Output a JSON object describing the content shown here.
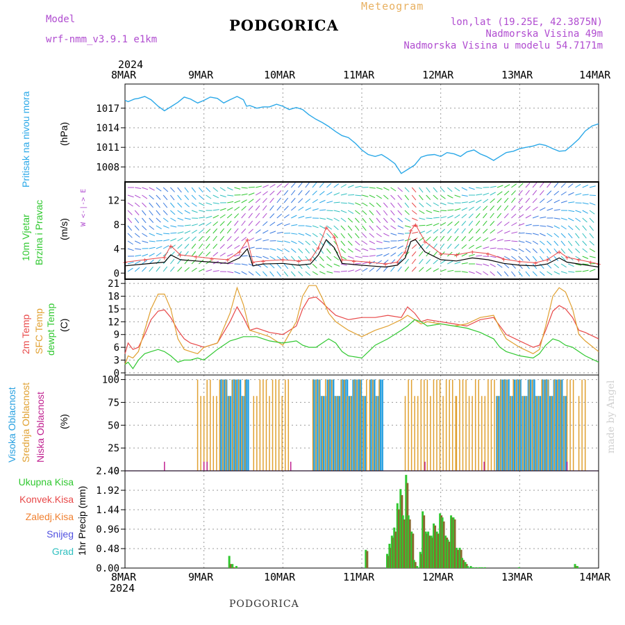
{
  "header": {
    "model_label": "Model",
    "model_name": "wrf-nmm_v3.9.1  e1km",
    "title": "PODGORICA",
    "meteogram": "Meteogram",
    "lonlat": "lon,lat (19.25E, 42.3875N)",
    "elev": "Nadmorska Visina 49m",
    "elev_model": "Nadmorska Visina u modelu 54.7171m"
  },
  "axis_top": {
    "year": "2024",
    "dates": [
      "8MAR",
      "9MAR",
      "10MAR",
      "11MAR",
      "12MAR",
      "13MAR",
      "14MAR"
    ]
  },
  "axis_bottom": {
    "year": "2024",
    "dates": [
      "8MAR",
      "9MAR",
      "10MAR",
      "11MAR",
      "12MAR",
      "13MAR",
      "14MAR"
    ]
  },
  "footer": "PODGORICA",
  "watermark": "made by Angel",
  "panels": {
    "pressure": {
      "label": "Pritisak na nivou mora",
      "unit": "(hPa)"
    },
    "wind": {
      "label1": "10m Vjetar",
      "label2": "Brzina i Pravac",
      "unit": "(m/s)",
      "compass": "W <-|-> E"
    },
    "temp": {
      "label1": "2m Temp",
      "label2": "SFC Temp",
      "label3": "dewpt Temp",
      "unit": "(C)"
    },
    "cloud": {
      "label1": "Visoka Oblacnost",
      "label2": "Srednja Oblacnost",
      "label3": "Niska Oblacnost",
      "unit": "(%)"
    },
    "precip": {
      "unit": "1hr Precip (mm)",
      "legend": [
        "Ukupna Kisa",
        "Konvek.Kisa",
        "Zaledj.Kisa",
        "Snijeg",
        "Grad"
      ]
    }
  },
  "colors": {
    "pressure": "#2aa8e8",
    "temp2m": "#e84848",
    "sfc": "#e0a030",
    "dewpt": "#30c830",
    "cloud_high": "#28a0e0",
    "cloud_mid": "#e0a030",
    "cloud_low": "#c02090",
    "total": "#30c830",
    "conv": "#e84848",
    "frz": "#f08030",
    "snow": "#5050e0",
    "hail": "#30c0c0",
    "purple": "#b04cd0",
    "wind_speed": "#000000",
    "wind_gust": "#e84848"
  },
  "chart_data": [
    {
      "type": "line",
      "title": "Pritisak na nivou mora",
      "ylabel": "(hPa)",
      "x_days": [
        0,
        0.04,
        0.08,
        0.12,
        0.17,
        0.25,
        0.33,
        0.42,
        0.5,
        0.58,
        0.67,
        0.75,
        0.83,
        0.92,
        1.0,
        1.08,
        1.17,
        1.25,
        1.33,
        1.42,
        1.5,
        1.54,
        1.58,
        1.67,
        1.75,
        1.83,
        1.92,
        2.0,
        2.08,
        2.17,
        2.25,
        2.33,
        2.42,
        2.5,
        2.58,
        2.67,
        2.75,
        2.83,
        2.92,
        3.0,
        3.08,
        3.17,
        3.25,
        3.33,
        3.42,
        3.5,
        3.58,
        3.67,
        3.75,
        3.83,
        3.92,
        4.0,
        4.08,
        4.17,
        4.25,
        4.33,
        4.42,
        4.5,
        4.58,
        4.67,
        4.75,
        4.83,
        4.92,
        5.0,
        5.08,
        5.17,
        5.25,
        5.33,
        5.42,
        5.5,
        5.58,
        5.67,
        5.75,
        5.83,
        5.92,
        6.0
      ],
      "values": [
        1018.2,
        1018.0,
        1018.2,
        1018.4,
        1018.5,
        1018.8,
        1018.3,
        1017.3,
        1016.6,
        1017.2,
        1017.9,
        1018.7,
        1018.4,
        1017.8,
        1018.2,
        1018.7,
        1018.5,
        1017.8,
        1018.3,
        1018.8,
        1018.3,
        1017.3,
        1017.4,
        1017.0,
        1017.2,
        1017.2,
        1017.6,
        1017.3,
        1016.8,
        1017.1,
        1016.8,
        1016.0,
        1015.3,
        1014.8,
        1014.2,
        1013.4,
        1012.8,
        1012.5,
        1011.6,
        1010.6,
        1009.9,
        1009.6,
        1009.9,
        1009.3,
        1008.5,
        1007.0,
        1007.6,
        1008.3,
        1009.5,
        1009.8,
        1009.9,
        1009.6,
        1010.2,
        1010.0,
        1009.6,
        1010.3,
        1010.6,
        1010.0,
        1009.6,
        1009.0,
        1009.6,
        1010.2,
        1010.4,
        1010.8,
        1011.0,
        1011.2,
        1011.5,
        1011.3,
        1010.8,
        1010.4,
        1010.5,
        1011.4,
        1012.3,
        1013.5,
        1014.3,
        1014.6
      ],
      "ylim": [
        1005.7,
        1020.7
      ],
      "yticks": [
        1008,
        1011,
        1014,
        1017
      ]
    },
    {
      "type": "line",
      "title": "10m Vjetar Brzina i Pravac",
      "ylabel": "(m/s)",
      "series": [
        {
          "name": "speed",
          "x_days": [
            0,
            0.25,
            0.5,
            0.58,
            0.7,
            0.9,
            1.1,
            1.3,
            1.45,
            1.55,
            1.62,
            1.75,
            2.0,
            2.2,
            2.35,
            2.45,
            2.55,
            2.65,
            2.75,
            2.9,
            3.1,
            3.3,
            3.45,
            3.55,
            3.62,
            3.68,
            3.8,
            4.0,
            4.2,
            4.4,
            4.6,
            4.8,
            5.0,
            5.2,
            5.35,
            5.5,
            5.6,
            5.75,
            5.9,
            6.0
          ],
          "values": [
            1.2,
            1.5,
            1.8,
            3.0,
            2.2,
            2.0,
            1.8,
            1.6,
            2.5,
            4.0,
            1.2,
            1.5,
            1.6,
            1.3,
            1.5,
            3.0,
            5.5,
            4.2,
            1.6,
            1.4,
            1.2,
            1.0,
            1.3,
            2.5,
            5.2,
            5.5,
            3.5,
            2.2,
            2.0,
            2.5,
            2.2,
            1.6,
            1.3,
            1.2,
            1.5,
            2.5,
            1.8,
            1.5,
            1.2,
            1.0
          ]
        },
        {
          "name": "gust",
          "x_days": [
            0,
            0.25,
            0.5,
            0.58,
            0.7,
            0.9,
            1.1,
            1.3,
            1.45,
            1.55,
            1.62,
            1.75,
            2.0,
            2.2,
            2.35,
            2.45,
            2.55,
            2.65,
            2.75,
            2.9,
            3.1,
            3.3,
            3.45,
            3.55,
            3.62,
            3.68,
            3.8,
            4.0,
            4.2,
            4.4,
            4.6,
            4.8,
            5.0,
            5.2,
            5.35,
            5.5,
            5.6,
            5.75,
            5.9,
            6.0
          ],
          "values": [
            1.8,
            2.2,
            2.6,
            4.5,
            3.0,
            2.7,
            2.4,
            2.2,
            3.5,
            5.5,
            1.8,
            2.0,
            2.2,
            2.0,
            2.2,
            4.2,
            7.5,
            6.0,
            2.2,
            2.0,
            1.8,
            1.5,
            1.8,
            3.5,
            7.0,
            8.0,
            5.2,
            3.2,
            3.0,
            3.5,
            3.2,
            2.3,
            1.9,
            1.7,
            2.2,
            3.5,
            2.6,
            2.2,
            1.8,
            1.5
          ]
        }
      ],
      "ylim": [
        -1,
        15
      ],
      "yticks": [
        0,
        4,
        8,
        12
      ]
    },
    {
      "type": "line",
      "title": "Temperature",
      "ylabel": "(C)",
      "series": [
        {
          "name": "2m Temp",
          "x_days": [
            0,
            0.04,
            0.1,
            0.17,
            0.25,
            0.33,
            0.42,
            0.5,
            0.58,
            0.67,
            0.75,
            0.83,
            0.92,
            1.0,
            1.17,
            1.33,
            1.42,
            1.5,
            1.58,
            1.67,
            1.75,
            1.83,
            2.0,
            2.17,
            2.25,
            2.33,
            2.42,
            2.5,
            2.58,
            2.67,
            2.75,
            2.83,
            3.0,
            3.17,
            3.33,
            3.5,
            3.58,
            3.67,
            3.75,
            3.83,
            4.0,
            4.17,
            4.33,
            4.5,
            4.67,
            4.75,
            4.83,
            5.0,
            5.17,
            5.25,
            5.33,
            5.42,
            5.5,
            5.58,
            5.67,
            5.75,
            5.83,
            6.0
          ],
          "values": [
            4.5,
            7.0,
            5.5,
            6.0,
            9.0,
            12.5,
            14.5,
            14.8,
            13.0,
            10.0,
            8.0,
            7.0,
            6.5,
            6.0,
            7.0,
            12.0,
            15.5,
            13.0,
            10.0,
            10.5,
            10.0,
            9.5,
            9.0,
            11.0,
            15.0,
            17.5,
            17.8,
            16.5,
            15.0,
            13.5,
            13.0,
            12.5,
            13.0,
            13.0,
            13.5,
            13.0,
            15.5,
            14.0,
            12.0,
            12.5,
            12.0,
            11.5,
            11.0,
            12.5,
            13.0,
            11.0,
            9.0,
            7.5,
            6.0,
            6.5,
            10.0,
            14.5,
            15.8,
            15.0,
            13.0,
            10.0,
            9.5,
            8.0
          ]
        },
        {
          "name": "SFC Temp",
          "x_days": [
            0,
            0.04,
            0.1,
            0.17,
            0.25,
            0.33,
            0.42,
            0.5,
            0.58,
            0.67,
            0.75,
            0.83,
            0.92,
            1.0,
            1.17,
            1.33,
            1.42,
            1.5,
            1.58,
            1.67,
            1.75,
            1.83,
            2.0,
            2.17,
            2.25,
            2.33,
            2.42,
            2.5,
            2.58,
            2.67,
            2.75,
            2.83,
            3.0,
            3.17,
            3.33,
            3.5,
            3.58,
            3.67,
            3.75,
            3.83,
            4.0,
            4.17,
            4.33,
            4.5,
            4.67,
            4.75,
            4.83,
            5.0,
            5.17,
            5.25,
            5.33,
            5.42,
            5.5,
            5.58,
            5.67,
            5.75,
            5.83,
            6.0
          ],
          "values": [
            2.0,
            4.0,
            3.5,
            5.0,
            10.0,
            15.0,
            18.5,
            18.5,
            15.0,
            8.0,
            5.5,
            5.0,
            4.5,
            6.0,
            7.0,
            14.0,
            20.0,
            16.0,
            10.0,
            9.5,
            9.0,
            8.5,
            6.5,
            12.0,
            18.0,
            20.5,
            20.5,
            17.5,
            14.0,
            12.0,
            11.0,
            10.0,
            8.5,
            10.0,
            11.0,
            12.5,
            13.5,
            12.5,
            11.5,
            12.0,
            11.5,
            11.0,
            11.5,
            13.0,
            13.5,
            10.5,
            8.0,
            6.0,
            4.5,
            5.5,
            11.0,
            18.0,
            20.0,
            19.0,
            15.0,
            9.0,
            7.5,
            5.0
          ]
        },
        {
          "name": "dewpt Temp",
          "x_days": [
            0,
            0.04,
            0.1,
            0.17,
            0.25,
            0.33,
            0.42,
            0.5,
            0.58,
            0.67,
            0.75,
            0.83,
            0.92,
            1.0,
            1.17,
            1.33,
            1.42,
            1.5,
            1.58,
            1.67,
            1.75,
            1.83,
            2.0,
            2.17,
            2.25,
            2.33,
            2.42,
            2.5,
            2.58,
            2.67,
            2.75,
            2.83,
            3.0,
            3.17,
            3.33,
            3.5,
            3.58,
            3.67,
            3.75,
            3.83,
            4.0,
            4.17,
            4.33,
            4.5,
            4.67,
            4.75,
            4.83,
            5.0,
            5.17,
            5.25,
            5.33,
            5.42,
            5.5,
            5.58,
            5.67,
            5.75,
            5.83,
            6.0
          ],
          "values": [
            2.0,
            2.5,
            1.0,
            3.0,
            4.5,
            5.0,
            5.5,
            5.0,
            4.0,
            2.5,
            3.0,
            3.0,
            3.5,
            3.0,
            5.5,
            7.5,
            8.0,
            8.5,
            8.5,
            8.5,
            8.0,
            7.5,
            7.0,
            7.5,
            6.5,
            6.0,
            6.0,
            7.0,
            8.0,
            7.0,
            5.0,
            4.0,
            3.5,
            6.5,
            8.0,
            10.0,
            11.0,
            12.5,
            12.0,
            11.0,
            11.5,
            11.0,
            10.5,
            9.5,
            8.0,
            6.0,
            5.0,
            4.0,
            3.5,
            4.5,
            6.5,
            8.0,
            7.5,
            6.5,
            6.0,
            5.0,
            4.0,
            2.5
          ]
        }
      ],
      "ylim": [
        -0.5,
        22
      ],
      "yticks": [
        0,
        3,
        6,
        9,
        12,
        15,
        18,
        21
      ]
    },
    {
      "type": "bar",
      "title": "Oblacnost",
      "ylabel": "(%)",
      "series": [
        {
          "name": "Visoka Oblacnost",
          "ranges_days": [
            [
              1.2,
              1.55
            ],
            [
              2.38,
              3.05
            ],
            [
              3.1,
              3.25
            ],
            [
              4.7,
              5.6
            ]
          ],
          "values": [
            100
          ]
        },
        {
          "name": "Srednja Oblacnost",
          "ranges_days": [
            [
              0.92,
              1.55
            ],
            [
              1.63,
              2.1
            ],
            [
              2.38,
              3.25
            ],
            [
              3.55,
              4.2
            ],
            [
              4.2,
              5.7
            ],
            [
              5.75,
              5.85
            ]
          ],
          "values": [
            100
          ]
        },
        {
          "name": "Niska Oblacnost",
          "ranges_days": [
            [
              0.5,
              0.52
            ],
            [
              1.0,
              1.05
            ],
            [
              2.1,
              2.12
            ],
            [
              3.8,
              3.82
            ],
            [
              4.55,
              4.57
            ],
            [
              5.6,
              5.62
            ]
          ],
          "values": [
            10
          ]
        }
      ],
      "ylim": [
        0,
        105
      ],
      "yticks": [
        0,
        25,
        50,
        75,
        100
      ]
    },
    {
      "type": "bar",
      "title": "1hr Precip",
      "ylabel": "1hr Precip (mm)",
      "x_days": [
        1.33,
        1.37,
        1.42,
        3.06,
        3.33,
        3.36,
        3.39,
        3.42,
        3.46,
        3.5,
        3.53,
        3.57,
        3.6,
        3.64,
        3.67,
        3.71,
        3.75,
        3.78,
        3.82,
        3.85,
        3.89,
        3.92,
        3.96,
        4.0,
        4.03,
        4.07,
        4.1,
        4.14,
        4.17,
        4.21,
        4.25,
        4.28,
        4.32,
        4.35,
        4.39,
        4.42,
        4.46,
        4.5,
        4.53,
        4.57,
        5.0,
        5.71,
        5.74
      ],
      "total": [
        0.3,
        0.1,
        0.05,
        0.45,
        0.35,
        0.6,
        0.8,
        1.0,
        1.6,
        1.95,
        1.3,
        2.3,
        1.3,
        0.9,
        0.2,
        0.05,
        0.4,
        1.4,
        0.9,
        0.9,
        0.8,
        1.1,
        0.9,
        1.35,
        1.25,
        0.8,
        0.7,
        1.3,
        1.25,
        0.5,
        0.5,
        0.25,
        0.15,
        0.05,
        0.05,
        0.02,
        0.02,
        0.02,
        0.02,
        0.02,
        0.02,
        0.1,
        0.05
      ],
      "conv": [
        0.1,
        0.02,
        0.0,
        0.42,
        0.3,
        0.5,
        0.75,
        0.9,
        1.45,
        1.8,
        1.2,
        2.1,
        1.2,
        0.85,
        0.15,
        0.0,
        0.35,
        1.3,
        0.85,
        0.8,
        0.75,
        1.05,
        0.85,
        1.3,
        1.15,
        0.75,
        0.65,
        1.25,
        1.2,
        0.45,
        0.45,
        0.2,
        0.1,
        0.0,
        0.0,
        0.0,
        0.0,
        0.0,
        0.0,
        0.0,
        0.0,
        0.05,
        0.0
      ],
      "ylim": [
        0,
        2.4
      ],
      "yticks": [
        0,
        0.48,
        0.96,
        1.44,
        1.92,
        2.4
      ]
    }
  ]
}
